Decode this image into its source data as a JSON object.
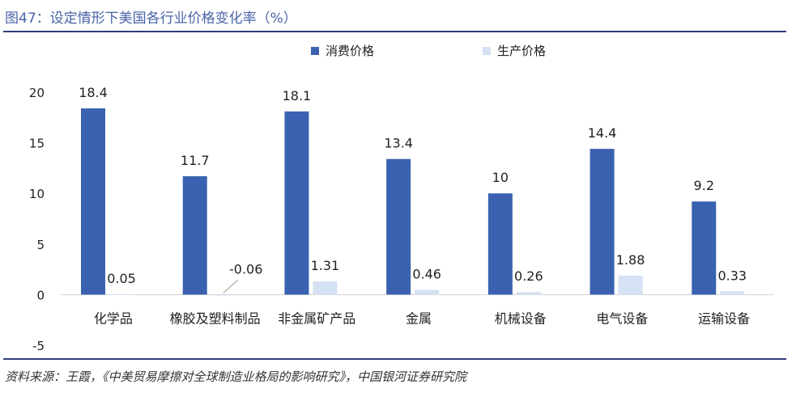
{
  "figure": {
    "title": "图47：设定情形下美国各行业价格变化率（%）",
    "source": "资料来源：王霞，《中美贸易摩擦对全球制造业格局的影响研究》，中国银河证券研究院"
  },
  "colors": {
    "series1": "#3a62b0",
    "series2": "#d5e2f3",
    "rule": "#2e3f7a",
    "title": "#4a63a8"
  },
  "chart_data": {
    "type": "bar",
    "categories": [
      "化学品",
      "橡胶及塑料制品",
      "非金属矿产品",
      "金属",
      "机械设备",
      "电气设备",
      "运输设备"
    ],
    "series": [
      {
        "name": "消费价格",
        "values": [
          18.4,
          11.7,
          18.1,
          13.4,
          10,
          14.4,
          9.2
        ],
        "labels": [
          "18.4",
          "11.7",
          "18.1",
          "13.4",
          "10",
          "14.4",
          "9.2"
        ]
      },
      {
        "name": "生产价格",
        "values": [
          0.05,
          -0.06,
          1.31,
          0.46,
          0.26,
          1.88,
          0.33
        ],
        "labels": [
          "0.05",
          "-0.06",
          "1.31",
          "0.46",
          "0.26",
          "1.88",
          "0.33"
        ]
      }
    ],
    "yticks": [
      "20",
      "15",
      "10",
      "5",
      "0",
      "-5"
    ],
    "ylim": [
      -5,
      20
    ],
    "legend_position": "top-center",
    "grid": false
  }
}
